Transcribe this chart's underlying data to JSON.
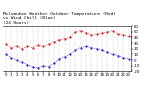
{
  "title": "Milwaukee Weather Outdoor Temperature (Red)\nvs Wind Chill (Blue)\n(24 Hours)",
  "title_fontsize": 3.2,
  "background_color": "#ffffff",
  "grid_color": "#888888",
  "hours": [
    0,
    1,
    2,
    3,
    4,
    5,
    6,
    7,
    8,
    9,
    10,
    11,
    12,
    13,
    14,
    15,
    16,
    17,
    18,
    19,
    20,
    21,
    22,
    23
  ],
  "temp_red": [
    28,
    22,
    25,
    20,
    24,
    22,
    26,
    24,
    28,
    32,
    36,
    38,
    40,
    50,
    52,
    48,
    44,
    46,
    48,
    50,
    52,
    46,
    44,
    42
  ],
  "wind_chill_blue": [
    10,
    4,
    0,
    -4,
    -8,
    -12,
    -14,
    -10,
    -12,
    -6,
    2,
    6,
    10,
    18,
    22,
    24,
    22,
    20,
    18,
    14,
    10,
    8,
    4,
    2
  ],
  "ylim": [
    -20,
    60
  ],
  "yticks": [
    -20,
    -10,
    0,
    10,
    20,
    30,
    40,
    50,
    60
  ],
  "ytick_labels": [
    "-20",
    "-10",
    "0",
    "10",
    "20",
    "30",
    "40",
    "50",
    "60"
  ],
  "xtick_labels": [
    "0",
    "1",
    "2",
    "3",
    "4",
    "5",
    "6",
    "7",
    "8",
    "9",
    "10",
    "11",
    "12",
    "13",
    "14",
    "15",
    "16",
    "17",
    "18",
    "19",
    "20",
    "21",
    "22",
    "23"
  ],
  "red_color": "#cc0000",
  "blue_color": "#0000cc",
  "line_width": 0.5,
  "marker_size": 1.0,
  "tick_label_size": 2.8,
  "title_color": "#000000"
}
